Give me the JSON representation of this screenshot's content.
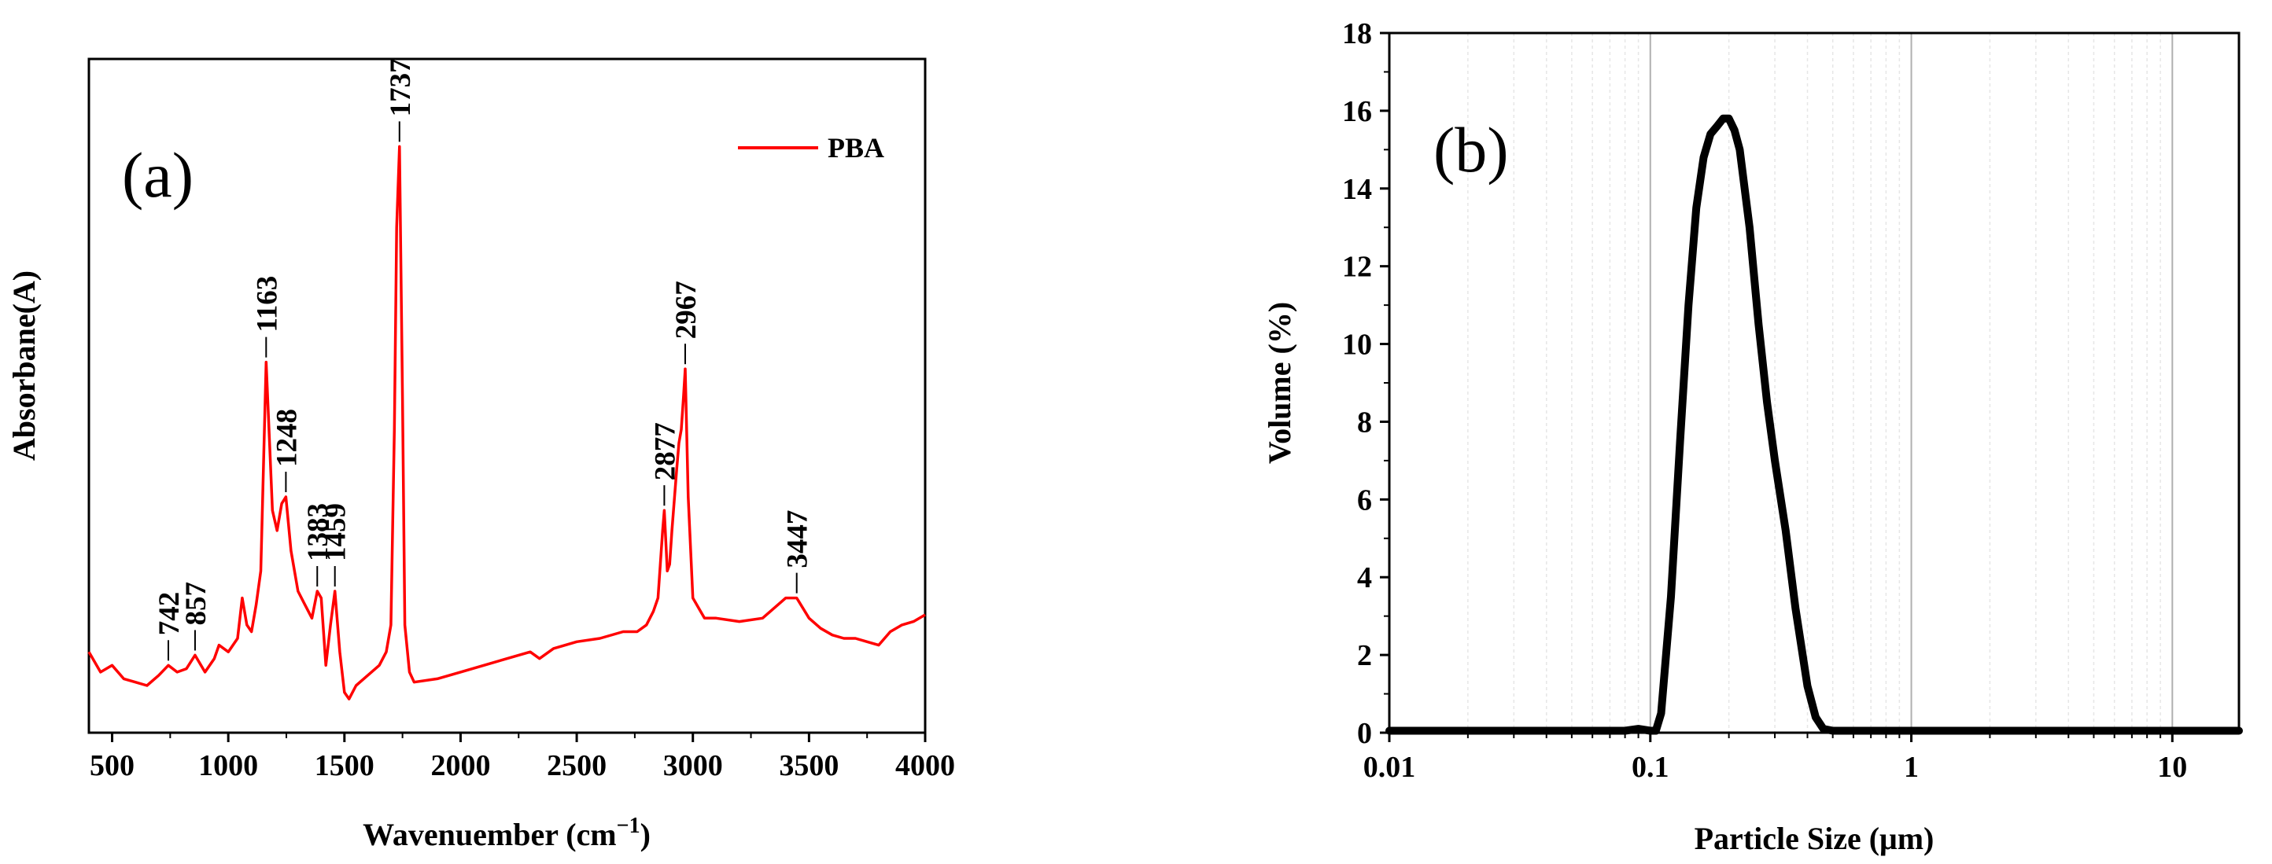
{
  "colors": {
    "spectrum": "#ff0000",
    "psd_curve": "#000000",
    "axes": "#000000",
    "major_grid": "#b0b0b0",
    "minor_grid": "#e6e6e6"
  },
  "chart_data": [
    {
      "type": "line",
      "panel_label": "(a)",
      "xlabel": "Wavenuember (cm",
      "xlabel_sup": "−1",
      "xlabel_tail": ")",
      "ylabel": "Absorbane(A)",
      "xlim": [
        400,
        4000
      ],
      "ylim": [
        0,
        1
      ],
      "xticks": [
        500,
        1000,
        1500,
        2000,
        2500,
        3000,
        3500,
        4000
      ],
      "yticks_shown": false,
      "grid": false,
      "legend": {
        "position": "top-right",
        "entries": [
          "PBA"
        ]
      },
      "series": [
        {
          "name": "PBA",
          "x": [
            400,
            450,
            500,
            550,
            600,
            650,
            700,
            742,
            780,
            820,
            857,
            900,
            940,
            960,
            1000,
            1040,
            1060,
            1080,
            1100,
            1120,
            1140,
            1163,
            1190,
            1210,
            1230,
            1248,
            1270,
            1300,
            1330,
            1360,
            1383,
            1400,
            1420,
            1440,
            1459,
            1480,
            1500,
            1520,
            1550,
            1600,
            1650,
            1680,
            1700,
            1715,
            1725,
            1737,
            1750,
            1760,
            1780,
            1800,
            1900,
            2000,
            2100,
            2200,
            2300,
            2340,
            2400,
            2500,
            2600,
            2700,
            2760,
            2800,
            2830,
            2850,
            2870,
            2877,
            2890,
            2900,
            2910,
            2930,
            2940,
            2950,
            2960,
            2967,
            2980,
            3000,
            3050,
            3100,
            3200,
            3300,
            3400,
            3447,
            3500,
            3550,
            3600,
            3650,
            3700,
            3750,
            3800,
            3850,
            3900,
            3950,
            4000
          ],
          "y": [
            0.12,
            0.09,
            0.1,
            0.08,
            0.075,
            0.07,
            0.085,
            0.1,
            0.09,
            0.095,
            0.115,
            0.09,
            0.11,
            0.13,
            0.12,
            0.14,
            0.2,
            0.16,
            0.15,
            0.19,
            0.24,
            0.55,
            0.33,
            0.3,
            0.34,
            0.35,
            0.27,
            0.21,
            0.19,
            0.17,
            0.21,
            0.2,
            0.1,
            0.16,
            0.21,
            0.12,
            0.06,
            0.05,
            0.07,
            0.085,
            0.1,
            0.12,
            0.16,
            0.45,
            0.75,
            0.87,
            0.5,
            0.16,
            0.09,
            0.075,
            0.08,
            0.09,
            0.1,
            0.11,
            0.12,
            0.11,
            0.125,
            0.135,
            0.14,
            0.15,
            0.15,
            0.16,
            0.18,
            0.2,
            0.3,
            0.33,
            0.24,
            0.25,
            0.3,
            0.39,
            0.43,
            0.45,
            0.5,
            0.54,
            0.35,
            0.2,
            0.17,
            0.17,
            0.165,
            0.17,
            0.2,
            0.2,
            0.17,
            0.155,
            0.145,
            0.14,
            0.14,
            0.135,
            0.13,
            0.15,
            0.16,
            0.165,
            0.175
          ]
        }
      ],
      "annotations": [
        {
          "label": "742",
          "x": 742
        },
        {
          "label": "857",
          "x": 857
        },
        {
          "label": "1163",
          "x": 1163
        },
        {
          "label": "1248",
          "x": 1248
        },
        {
          "label": "1383",
          "x": 1383
        },
        {
          "label": "1459",
          "x": 1459
        },
        {
          "label": "1737",
          "x": 1737
        },
        {
          "label": "2877",
          "x": 2877
        },
        {
          "label": "2967",
          "x": 2967
        },
        {
          "label": "3447",
          "x": 3447
        }
      ]
    },
    {
      "type": "line",
      "panel_label": "(b)",
      "xlabel": "Particle Size (μm)",
      "ylabel": "Volume (%)",
      "xscale": "log",
      "xlim": [
        0.01,
        18
      ],
      "ylim": [
        0,
        18
      ],
      "xticks": [
        0.01,
        0.1,
        1,
        10
      ],
      "xtick_labels": [
        "0.01",
        "0.1",
        "1",
        "10"
      ],
      "yticks": [
        0,
        2,
        4,
        6,
        8,
        10,
        12,
        14,
        16,
        18
      ],
      "grid": true,
      "series": [
        {
          "name": "Volume",
          "x": [
            0.01,
            0.05,
            0.08,
            0.09,
            0.1,
            0.105,
            0.11,
            0.12,
            0.13,
            0.14,
            0.15,
            0.16,
            0.17,
            0.18,
            0.19,
            0.2,
            0.21,
            0.22,
            0.24,
            0.26,
            0.28,
            0.3,
            0.33,
            0.36,
            0.4,
            0.43,
            0.46,
            0.5,
            0.6,
            1,
            10,
            18
          ],
          "y": [
            0.05,
            0.05,
            0.05,
            0.1,
            0.05,
            0.05,
            0.5,
            3.5,
            7.5,
            11,
            13.5,
            14.8,
            15.4,
            15.6,
            15.8,
            15.8,
            15.5,
            15,
            13,
            10.5,
            8.5,
            7,
            5.2,
            3.2,
            1.2,
            0.4,
            0.1,
            0.05,
            0.05,
            0.05,
            0.05,
            0.05
          ]
        }
      ]
    }
  ]
}
